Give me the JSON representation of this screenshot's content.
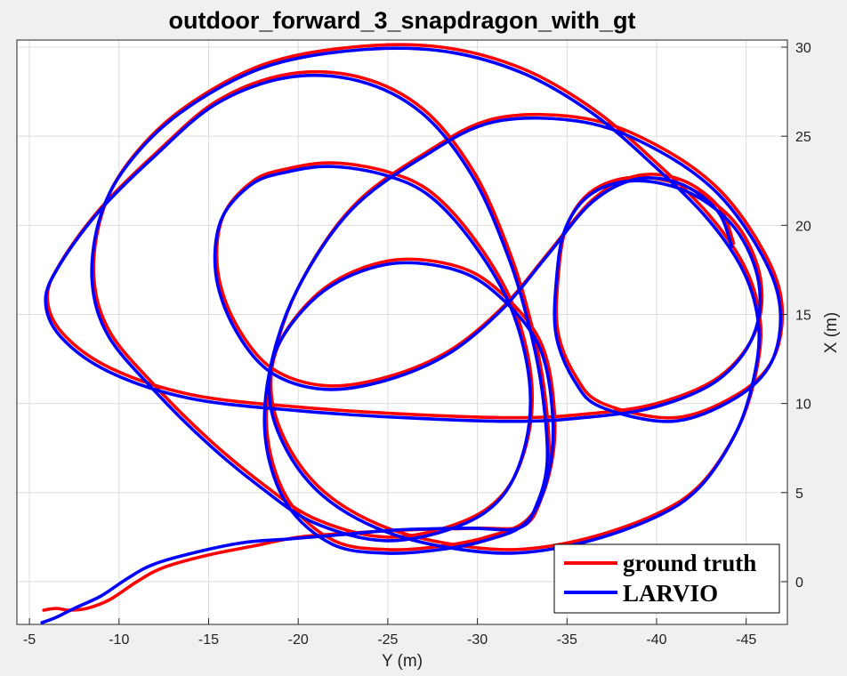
{
  "chart_data": {
    "type": "line",
    "title": "outdoor_forward_3_snapdragon_with_gt",
    "xlabel": "Y (m)",
    "ylabel": "X (m)",
    "xlim": [
      -4.3,
      -47.3
    ],
    "ylim": [
      -2.4,
      30.4
    ],
    "x_reversed": true,
    "y_axis_side": "right",
    "grid": true,
    "legend_placement": "bottom-right",
    "xticks": [
      -5,
      -10,
      -15,
      -20,
      -25,
      -30,
      -35,
      -40,
      -45
    ],
    "yticks": [
      0,
      5,
      10,
      15,
      20,
      25,
      30
    ],
    "series": [
      {
        "name": "ground truth",
        "color": "#ff0000",
        "points": [
          [
            -5.8,
            -1.6
          ],
          [
            -6.5,
            -1.5
          ],
          [
            -7.2,
            -1.6
          ],
          [
            -8.2,
            -1.5
          ],
          [
            -9.5,
            -1.0
          ],
          [
            -11.0,
            0.0
          ],
          [
            -12.5,
            0.8
          ],
          [
            -15.0,
            1.5
          ],
          [
            -17.5,
            2.0
          ],
          [
            -20.0,
            2.5
          ],
          [
            -22.5,
            2.7
          ],
          [
            -26.0,
            2.9
          ],
          [
            -30.0,
            3.0
          ],
          [
            -32.5,
            3.1
          ],
          [
            -33.5,
            4.5
          ],
          [
            -34.0,
            7.0
          ],
          [
            -33.7,
            11.0
          ],
          [
            -33.0,
            14.5
          ],
          [
            -31.8,
            18.5
          ],
          [
            -29.8,
            23.0
          ],
          [
            -27.0,
            26.5
          ],
          [
            -23.5,
            28.3
          ],
          [
            -19.5,
            28.5
          ],
          [
            -15.5,
            27.0
          ],
          [
            -12.0,
            24.0
          ],
          [
            -9.0,
            21.0
          ],
          [
            -6.8,
            18.0
          ],
          [
            -6.0,
            16.0
          ],
          [
            -6.8,
            14.0
          ],
          [
            -9.5,
            12.0
          ],
          [
            -14.0,
            10.5
          ],
          [
            -20.0,
            9.8
          ],
          [
            -26.0,
            9.4
          ],
          [
            -32.0,
            9.2
          ],
          [
            -36.0,
            9.4
          ],
          [
            -40.0,
            10.0
          ],
          [
            -43.5,
            11.5
          ],
          [
            -45.5,
            14.0
          ],
          [
            -45.8,
            17.0
          ],
          [
            -44.5,
            20.0
          ],
          [
            -42.0,
            22.0
          ],
          [
            -39.0,
            22.7
          ],
          [
            -36.5,
            22.0
          ],
          [
            -35.0,
            20.0
          ],
          [
            -34.5,
            17.0
          ],
          [
            -34.5,
            14.0
          ],
          [
            -35.5,
            11.5
          ],
          [
            -37.0,
            10.0
          ],
          [
            -41.0,
            9.2
          ],
          [
            -44.5,
            10.5
          ],
          [
            -46.5,
            12.5
          ],
          [
            -47.0,
            15.5
          ],
          [
            -46.0,
            18.5
          ],
          [
            -43.5,
            22.0
          ],
          [
            -40.0,
            24.5
          ],
          [
            -36.0,
            26.0
          ],
          [
            -31.0,
            26.0
          ],
          [
            -27.0,
            24.0
          ],
          [
            -23.0,
            21.0
          ],
          [
            -20.0,
            16.5
          ],
          [
            -18.5,
            12.0
          ],
          [
            -18.3,
            8.0
          ],
          [
            -19.5,
            4.5
          ],
          [
            -22.0,
            2.3
          ],
          [
            -25.0,
            1.8
          ],
          [
            -28.0,
            2.0
          ],
          [
            -30.5,
            2.5
          ],
          [
            -32.8,
            3.5
          ],
          [
            -34.0,
            6.0
          ],
          [
            -34.3,
            9.5
          ],
          [
            -33.5,
            13.5
          ],
          [
            -31.0,
            16.5
          ],
          [
            -28.5,
            17.8
          ],
          [
            -25.0,
            18.0
          ],
          [
            -21.5,
            16.5
          ],
          [
            -19.0,
            13.5
          ],
          [
            -18.5,
            10.5
          ],
          [
            -19.5,
            7.5
          ],
          [
            -21.5,
            5.0
          ],
          [
            -24.5,
            3.2
          ],
          [
            -28.0,
            2.2
          ],
          [
            -32.0,
            1.8
          ],
          [
            -36.0,
            2.4
          ],
          [
            -40.0,
            3.8
          ],
          [
            -42.5,
            5.5
          ],
          [
            -44.5,
            8.5
          ],
          [
            -45.5,
            11.5
          ],
          [
            -45.8,
            14.5
          ],
          [
            -45.0,
            17.5
          ],
          [
            -43.0,
            20.5
          ],
          [
            -40.0,
            23.5
          ],
          [
            -36.5,
            26.5
          ],
          [
            -32.5,
            28.8
          ],
          [
            -28.0,
            30.0
          ],
          [
            -23.0,
            30.0
          ],
          [
            -18.0,
            29.0
          ],
          [
            -13.5,
            26.5
          ],
          [
            -10.5,
            23.5
          ],
          [
            -9.0,
            20.5
          ],
          [
            -8.6,
            17.0
          ],
          [
            -9.5,
            14.0
          ],
          [
            -12.0,
            11.0
          ],
          [
            -15.0,
            8.0
          ],
          [
            -18.0,
            5.5
          ],
          [
            -21.0,
            3.5
          ],
          [
            -25.0,
            2.5
          ],
          [
            -29.0,
            3.3
          ],
          [
            -31.5,
            5.0
          ],
          [
            -32.8,
            8.0
          ],
          [
            -33.0,
            11.5
          ],
          [
            -32.0,
            15.5
          ],
          [
            -30.0,
            19.0
          ],
          [
            -27.5,
            21.8
          ],
          [
            -25.0,
            23.0
          ],
          [
            -22.0,
            23.5
          ],
          [
            -19.5,
            23.2
          ],
          [
            -17.5,
            22.5
          ],
          [
            -15.8,
            20.5
          ],
          [
            -15.5,
            17.5
          ],
          [
            -16.5,
            14.5
          ],
          [
            -18.5,
            12.0
          ],
          [
            -21.5,
            11.0
          ],
          [
            -25.0,
            11.5
          ],
          [
            -28.5,
            13.0
          ],
          [
            -31.5,
            15.5
          ],
          [
            -34.0,
            18.5
          ],
          [
            -36.5,
            21.5
          ],
          [
            -39.0,
            22.8
          ],
          [
            -41.5,
            22.5
          ],
          [
            -43.5,
            21.0
          ],
          [
            -44.3,
            19.0
          ]
        ]
      },
      {
        "name": "LARVIO",
        "color": "#0000ff",
        "points": [
          [
            -5.7,
            -2.3
          ],
          [
            -6.5,
            -2.0
          ],
          [
            -7.5,
            -1.5
          ],
          [
            -9.0,
            -0.8
          ],
          [
            -10.5,
            0.2
          ],
          [
            -12.0,
            1.0
          ],
          [
            -14.5,
            1.7
          ],
          [
            -17.0,
            2.2
          ],
          [
            -19.5,
            2.4
          ],
          [
            -22.0,
            2.6
          ],
          [
            -25.5,
            2.9
          ],
          [
            -29.5,
            3.0
          ],
          [
            -32.3,
            3.0
          ],
          [
            -33.3,
            4.3
          ],
          [
            -33.9,
            6.8
          ],
          [
            -33.6,
            10.8
          ],
          [
            -32.9,
            14.3
          ],
          [
            -31.7,
            18.3
          ],
          [
            -29.7,
            22.8
          ],
          [
            -26.9,
            26.3
          ],
          [
            -23.4,
            28.1
          ],
          [
            -19.4,
            28.3
          ],
          [
            -15.4,
            26.8
          ],
          [
            -11.9,
            23.8
          ],
          [
            -8.9,
            20.8
          ],
          [
            -6.7,
            17.8
          ],
          [
            -5.9,
            15.8
          ],
          [
            -6.7,
            13.8
          ],
          [
            -9.4,
            11.8
          ],
          [
            -13.9,
            10.3
          ],
          [
            -19.9,
            9.6
          ],
          [
            -25.9,
            9.2
          ],
          [
            -31.9,
            9.0
          ],
          [
            -35.9,
            9.2
          ],
          [
            -39.9,
            9.8
          ],
          [
            -43.4,
            11.3
          ],
          [
            -45.4,
            13.8
          ],
          [
            -45.7,
            16.8
          ],
          [
            -44.4,
            19.8
          ],
          [
            -41.9,
            21.8
          ],
          [
            -38.9,
            22.5
          ],
          [
            -36.4,
            21.8
          ],
          [
            -34.9,
            19.8
          ],
          [
            -34.4,
            16.8
          ],
          [
            -34.4,
            13.8
          ],
          [
            -35.4,
            11.3
          ],
          [
            -36.9,
            9.8
          ],
          [
            -40.9,
            9.0
          ],
          [
            -44.4,
            10.3
          ],
          [
            -46.4,
            12.3
          ],
          [
            -46.9,
            15.3
          ],
          [
            -45.9,
            18.3
          ],
          [
            -43.4,
            21.8
          ],
          [
            -39.9,
            24.3
          ],
          [
            -35.9,
            25.8
          ],
          [
            -30.9,
            25.8
          ],
          [
            -26.9,
            23.8
          ],
          [
            -22.9,
            20.8
          ],
          [
            -19.9,
            16.3
          ],
          [
            -18.4,
            11.8
          ],
          [
            -18.2,
            7.8
          ],
          [
            -19.4,
            4.3
          ],
          [
            -21.9,
            2.1
          ],
          [
            -24.9,
            1.6
          ],
          [
            -27.9,
            1.8
          ],
          [
            -30.4,
            2.3
          ],
          [
            -32.7,
            3.3
          ],
          [
            -33.9,
            5.8
          ],
          [
            -34.2,
            9.3
          ],
          [
            -33.4,
            13.3
          ],
          [
            -30.9,
            16.3
          ],
          [
            -28.4,
            17.6
          ],
          [
            -24.9,
            17.8
          ],
          [
            -21.4,
            16.3
          ],
          [
            -18.9,
            13.3
          ],
          [
            -18.4,
            10.3
          ],
          [
            -19.4,
            7.3
          ],
          [
            -21.4,
            4.8
          ],
          [
            -24.4,
            3.0
          ],
          [
            -27.9,
            2.0
          ],
          [
            -31.9,
            1.6
          ],
          [
            -35.9,
            2.2
          ],
          [
            -39.9,
            3.6
          ],
          [
            -42.4,
            5.3
          ],
          [
            -44.4,
            8.3
          ],
          [
            -45.4,
            11.3
          ],
          [
            -45.7,
            14.3
          ],
          [
            -44.9,
            17.3
          ],
          [
            -42.9,
            20.3
          ],
          [
            -39.9,
            23.3
          ],
          [
            -36.4,
            26.3
          ],
          [
            -32.4,
            28.6
          ],
          [
            -27.9,
            29.8
          ],
          [
            -22.9,
            29.8
          ],
          [
            -17.9,
            28.8
          ],
          [
            -13.4,
            26.3
          ],
          [
            -10.4,
            23.3
          ],
          [
            -8.9,
            20.3
          ],
          [
            -8.5,
            16.8
          ],
          [
            -9.4,
            13.8
          ],
          [
            -11.9,
            10.8
          ],
          [
            -14.9,
            7.8
          ],
          [
            -17.9,
            5.3
          ],
          [
            -20.9,
            3.3
          ],
          [
            -24.9,
            2.3
          ],
          [
            -28.9,
            3.1
          ],
          [
            -31.4,
            4.8
          ],
          [
            -32.7,
            7.8
          ],
          [
            -32.9,
            11.3
          ],
          [
            -31.9,
            15.3
          ],
          [
            -29.9,
            18.8
          ],
          [
            -27.4,
            21.6
          ],
          [
            -24.9,
            22.8
          ],
          [
            -21.9,
            23.3
          ],
          [
            -19.4,
            23.0
          ],
          [
            -17.4,
            22.3
          ],
          [
            -15.7,
            20.3
          ],
          [
            -15.4,
            17.3
          ],
          [
            -16.4,
            14.3
          ],
          [
            -18.4,
            11.8
          ],
          [
            -21.4,
            10.8
          ],
          [
            -24.9,
            11.3
          ],
          [
            -28.4,
            12.8
          ],
          [
            -31.4,
            15.3
          ],
          [
            -33.9,
            18.3
          ],
          [
            -36.4,
            21.3
          ],
          [
            -38.9,
            22.6
          ],
          [
            -41.4,
            22.3
          ],
          [
            -43.4,
            20.8
          ],
          [
            -44.2,
            18.8
          ]
        ]
      }
    ]
  }
}
